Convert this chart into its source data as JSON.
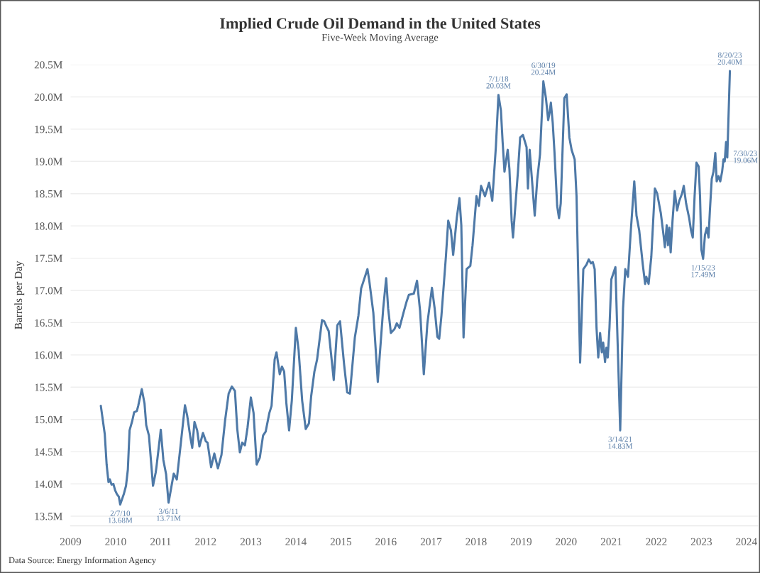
{
  "chart_data": {
    "type": "line",
    "title": "Implied Crude Oil Demand in the United States",
    "subtitle": "Five-Week Moving Average",
    "ylabel": "Barrels per Day",
    "x": [
      "2009-09-03",
      "2009-10-05",
      "2009-10-20",
      "2009-11-04",
      "2009-11-15",
      "2009-11-29",
      "2009-12-14",
      "2009-12-28",
      "2010-01-12",
      "2010-01-27",
      "2010-02-07",
      "2010-03-08",
      "2010-03-26",
      "2010-04-10",
      "2010-04-24",
      "2010-05-16",
      "2010-05-31",
      "2010-06-22",
      "2010-07-03",
      "2010-08-01",
      "2010-08-23",
      "2010-09-06",
      "2010-09-28",
      "2010-10-31",
      "2010-11-22",
      "2010-11-29",
      "2011-01-02",
      "2011-01-23",
      "2011-02-14",
      "2011-03-06",
      "2011-04-17",
      "2011-05-12",
      "2011-06-14",
      "2011-07-17",
      "2011-08-04",
      "2011-08-30",
      "2011-09-14",
      "2011-10-02",
      "2011-10-24",
      "2011-11-11",
      "2011-12-10",
      "2012-01-02",
      "2012-01-16",
      "2012-02-14",
      "2012-03-11",
      "2012-04-09",
      "2012-05-08",
      "2012-06-06",
      "2012-07-05",
      "2012-07-31",
      "2012-08-25",
      "2012-09-13",
      "2012-10-04",
      "2012-10-23",
      "2012-11-14",
      "2012-12-05",
      "2013-01-01",
      "2013-01-23",
      "2013-02-17",
      "2013-03-15",
      "2013-04-10",
      "2013-05-01",
      "2013-05-31",
      "2013-06-18",
      "2013-07-13",
      "2013-07-28",
      "2013-08-23",
      "2013-09-10",
      "2013-09-28",
      "2013-10-16",
      "2013-11-07",
      "2013-11-29",
      "2014-01-01",
      "2014-01-23",
      "2014-02-21",
      "2014-03-22",
      "2014-04-17",
      "2014-05-05",
      "2014-05-31",
      "2014-06-22",
      "2014-08-01",
      "2014-08-19",
      "2014-09-06",
      "2014-09-24",
      "2014-11-04",
      "2014-12-03",
      "2014-12-25",
      "2015-01-27",
      "2015-02-21",
      "2015-03-15",
      "2015-04-24",
      "2015-05-23",
      "2015-06-14",
      "2015-08-04",
      "2015-08-19",
      "2015-09-21",
      "2015-10-27",
      "2015-12-10",
      "2016-01-03",
      "2016-01-19",
      "2016-02-10",
      "2016-03-10",
      "2016-03-29",
      "2016-04-20",
      "2016-05-26",
      "2016-06-17",
      "2016-07-05",
      "2016-08-14",
      "2016-09-09",
      "2016-10-04",
      "2016-11-03",
      "2016-12-02",
      "2017-01-08",
      "2017-01-30",
      "2017-02-21",
      "2017-03-08",
      "2017-03-26",
      "2017-05-01",
      "2017-05-20",
      "2017-06-11",
      "2017-06-29",
      "2017-07-28",
      "2017-08-19",
      "2017-09-03",
      "2017-09-21",
      "2017-10-16",
      "2017-11-15",
      "2017-12-03",
      "2018-01-04",
      "2018-01-23",
      "2018-02-10",
      "2018-03-14",
      "2018-04-16",
      "2018-05-12",
      "2018-06-10",
      "2018-07-01",
      "2018-07-21",
      "2018-08-04",
      "2018-08-19",
      "2018-09-14",
      "2018-09-28",
      "2018-10-16",
      "2018-10-27",
      "2018-12-06",
      "2018-12-24",
      "2019-01-15",
      "2019-02-14",
      "2019-02-25",
      "2019-03-11",
      "2019-04-21",
      "2019-05-12",
      "2019-06-03",
      "2019-06-30",
      "2019-07-21",
      "2019-08-08",
      "2019-08-19",
      "2019-08-30",
      "2019-09-14",
      "2019-09-28",
      "2019-10-20",
      "2019-11-04",
      "2019-11-18",
      "2019-12-17",
      "2020-01-05",
      "2020-01-27",
      "2020-02-14",
      "2020-03-10",
      "2020-03-25",
      "2020-04-23",
      "2020-05-19",
      "2020-06-14",
      "2020-07-02",
      "2020-07-20",
      "2020-08-04",
      "2020-08-19",
      "2020-09-03",
      "2020-09-17",
      "2020-10-02",
      "2020-10-16",
      "2020-10-27",
      "2020-11-11",
      "2020-11-22",
      "2020-12-03",
      "2020-12-17",
      "2021-01-01",
      "2021-02-03",
      "2021-03-14",
      "2021-04-06",
      "2021-04-24",
      "2021-05-16",
      "2021-06-07",
      "2021-07-06",
      "2021-07-24",
      "2021-08-15",
      "2021-09-13",
      "2021-10-02",
      "2021-10-12",
      "2021-10-30",
      "2021-11-21",
      "2021-12-20",
      "2022-01-08",
      "2022-01-26",
      "2022-02-06",
      "2022-02-28",
      "2022-03-11",
      "2022-03-26",
      "2022-04-05",
      "2022-04-16",
      "2022-04-27",
      "2022-05-12",
      "2022-05-30",
      "2022-06-18",
      "2022-07-06",
      "2022-07-28",
      "2022-08-11",
      "2022-08-30",
      "2022-09-24",
      "2022-10-09",
      "2022-10-23",
      "2022-11-07",
      "2022-11-22",
      "2022-12-10",
      "2022-12-21",
      "2023-01-01",
      "2023-01-15",
      "2023-01-30",
      "2023-02-14",
      "2023-02-28",
      "2023-03-11",
      "2023-03-26",
      "2023-04-09",
      "2023-04-24",
      "2023-05-05",
      "2023-05-20",
      "2023-06-03",
      "2023-06-18",
      "2023-06-29",
      "2023-07-09",
      "2023-07-20",
      "2023-07-30",
      "2023-08-20"
    ],
    "series": [
      {
        "color": "#4e79a7",
        "values": [
          15.21,
          14.77,
          14.3,
          14.03,
          14.07,
          13.99,
          14.0,
          13.9,
          13.84,
          13.8,
          13.68,
          13.84,
          13.97,
          14.22,
          14.83,
          14.98,
          15.11,
          15.13,
          15.21,
          15.47,
          15.25,
          14.91,
          14.75,
          13.97,
          14.18,
          14.28,
          14.84,
          14.37,
          14.15,
          13.71,
          14.16,
          14.07,
          14.64,
          15.22,
          15.06,
          14.72,
          14.56,
          14.96,
          14.83,
          14.58,
          14.79,
          14.66,
          14.64,
          14.26,
          14.47,
          14.24,
          14.45,
          14.98,
          15.4,
          15.51,
          15.44,
          14.85,
          14.49,
          14.64,
          14.6,
          14.87,
          15.34,
          15.1,
          14.3,
          14.41,
          14.75,
          14.81,
          15.1,
          15.21,
          15.93,
          16.04,
          15.7,
          15.82,
          15.74,
          15.25,
          14.83,
          15.29,
          16.42,
          16.08,
          15.29,
          14.85,
          14.94,
          15.36,
          15.74,
          15.93,
          16.54,
          16.52,
          16.44,
          16.37,
          15.61,
          16.46,
          16.52,
          15.85,
          15.42,
          15.4,
          16.27,
          16.61,
          17.03,
          17.33,
          17.15,
          16.65,
          15.58,
          16.72,
          17.19,
          16.72,
          16.34,
          16.4,
          16.49,
          16.42,
          16.68,
          16.83,
          16.93,
          16.95,
          17.15,
          16.68,
          15.7,
          16.49,
          17.04,
          16.72,
          16.28,
          16.25,
          16.61,
          17.52,
          18.08,
          17.93,
          17.55,
          18.12,
          18.43,
          18.01,
          16.27,
          17.33,
          17.38,
          17.7,
          18.46,
          18.31,
          18.62,
          18.46,
          18.67,
          18.39,
          19.22,
          20.03,
          19.79,
          19.3,
          18.84,
          19.18,
          18.88,
          18.08,
          17.82,
          18.84,
          19.37,
          19.41,
          19.22,
          18.58,
          19.18,
          18.16,
          18.73,
          19.11,
          20.24,
          19.98,
          19.64,
          19.75,
          19.91,
          19.6,
          19.15,
          18.31,
          18.12,
          18.35,
          19.98,
          20.04,
          19.37,
          19.18,
          19.03,
          18.46,
          15.88,
          17.33,
          17.4,
          17.48,
          17.42,
          17.44,
          17.33,
          16.42,
          15.96,
          16.34,
          16.04,
          16.19,
          15.89,
          16.11,
          15.96,
          16.42,
          17.17,
          17.36,
          14.83,
          16.72,
          17.33,
          17.21,
          17.9,
          18.69,
          18.16,
          17.93,
          17.4,
          17.1,
          17.21,
          17.1,
          17.52,
          18.58,
          18.5,
          18.31,
          18.2,
          17.86,
          17.67,
          18.01,
          17.7,
          17.97,
          17.59,
          18.08,
          18.54,
          18.24,
          18.39,
          18.5,
          18.62,
          18.35,
          18.12,
          17.93,
          17.82,
          18.46,
          18.98,
          18.92,
          18.46,
          17.63,
          17.49,
          17.86,
          17.97,
          17.82,
          18.24,
          18.73,
          18.84,
          19.13,
          18.69,
          18.77,
          18.69,
          18.84,
          19.03,
          19.0,
          19.3,
          19.06,
          20.4
        ]
      }
    ],
    "xlim": [
      "2009-01-01",
      "2024-04-01"
    ],
    "xticks": [
      "2009",
      "2010",
      "2011",
      "2012",
      "2013",
      "2014",
      "2015",
      "2016",
      "2017",
      "2018",
      "2019",
      "2020",
      "2021",
      "2022",
      "2023",
      "2024"
    ],
    "ylim": [
      13.35,
      20.5
    ],
    "yticks": [
      {
        "value": 13.5,
        "label": "13.5M"
      },
      {
        "value": 14.0,
        "label": "14.0M"
      },
      {
        "value": 14.5,
        "label": "14.5M"
      },
      {
        "value": 15.0,
        "label": "15.0M"
      },
      {
        "value": 15.5,
        "label": "15.5M"
      },
      {
        "value": 16.0,
        "label": "16.0M"
      },
      {
        "value": 16.5,
        "label": "16.5M"
      },
      {
        "value": 17.0,
        "label": "17.0M"
      },
      {
        "value": 17.5,
        "label": "17.5M"
      },
      {
        "value": 18.0,
        "label": "18.0M"
      },
      {
        "value": 18.5,
        "label": "18.5M"
      },
      {
        "value": 19.0,
        "label": "19.0M"
      },
      {
        "value": 19.5,
        "label": "19.5M"
      },
      {
        "value": 20.0,
        "label": "20.0M"
      },
      {
        "value": 20.5,
        "label": "20.5M"
      }
    ],
    "grid": "y",
    "line_style": "solid",
    "annotations": [
      {
        "text": "2/7/10\n13.68M",
        "x": "2010-02-07",
        "y": 13.68
      },
      {
        "text": "3/6/11\n13.71M",
        "x": "2011-03-06",
        "y": 13.71
      },
      {
        "text": "7/1/18\n20.03M",
        "x": "2018-07-01",
        "y": 20.03
      },
      {
        "text": "6/30/19\n20.24M",
        "x": "2019-06-30",
        "y": 20.24
      },
      {
        "text": "3/14/21\n14.83M",
        "x": "2021-03-14",
        "y": 14.83
      },
      {
        "text": "1/15/23\n17.49M",
        "x": "2023-01-15",
        "y": 17.49
      },
      {
        "text": "7/30/23\n19.06M",
        "x": "2023-07-30",
        "y": 19.06
      },
      {
        "text": "8/20/23\n20.40M",
        "x": "2023-08-20",
        "y": 20.4
      },
      "Data Source: Energy Information Agency"
    ]
  }
}
